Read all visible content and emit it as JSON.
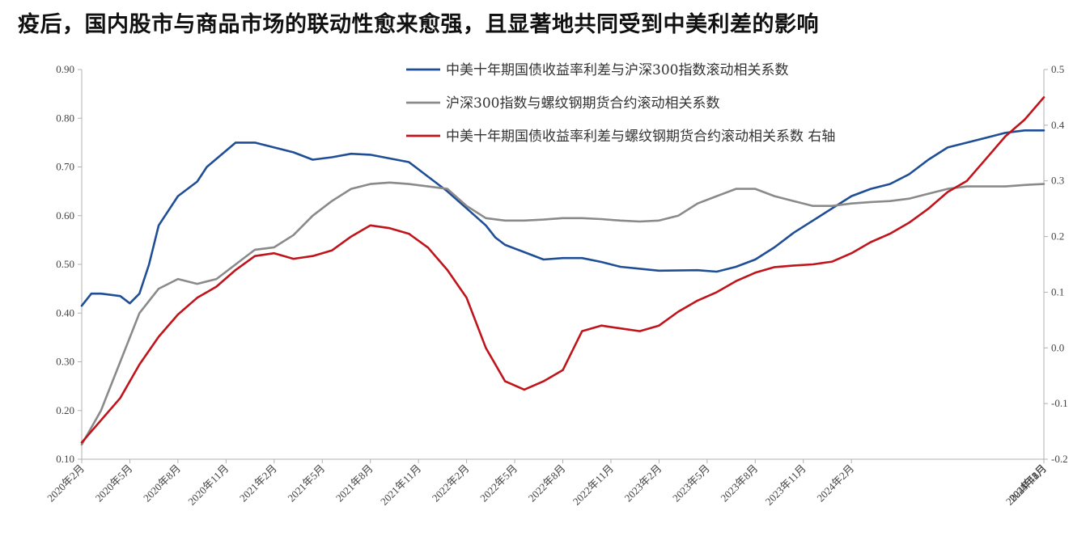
{
  "title": "疫后，国内股市与商品市场的联动性愈来愈强，且显著地共同受到中美利差的影响",
  "chart_data": {
    "type": "line",
    "title": "疫后，国内股市与商品市场的联动性愈来愈强，且显著地共同受到中美利差的影响",
    "xlabel": "",
    "ylabel": "",
    "ylabel_right": "",
    "x_ticks": [
      "2020年2月",
      "2020年5月",
      "2020年8月",
      "2020年11月",
      "2021年2月",
      "2021年5月",
      "2021年8月",
      "2021年11月",
      "2022年2月",
      "2022年5月",
      "2022年8月",
      "2022年11月",
      "2023年2月",
      "2023年5月",
      "2023年8月",
      "2023年11月",
      "2024年2月",
      "2024年5月",
      "2024年8月",
      "2024年11月",
      "2025年2月"
    ],
    "ylim": [
      0.1,
      0.9
    ],
    "ylim_right": [
      -0.2,
      0.5
    ],
    "y_ticks": [
      "0.10",
      "0.20",
      "0.30",
      "0.40",
      "0.50",
      "0.60",
      "0.70",
      "0.80",
      "0.90"
    ],
    "y_ticks_right": [
      "-0.2",
      "-0.1",
      "0.0",
      "0.1",
      "0.2",
      "0.3",
      "0.4",
      "0.5"
    ],
    "grid": false,
    "legend_position": "top-right",
    "series": [
      {
        "name": "中美十年期国债收益率利差与沪深300指数滚动相关系数",
        "color": "#1f4e96",
        "axis": "left",
        "points": [
          [
            0,
            0.415
          ],
          [
            0.5,
            0.44
          ],
          [
            1,
            0.44
          ],
          [
            2,
            0.435
          ],
          [
            2.5,
            0.42
          ],
          [
            3,
            0.44
          ],
          [
            3.5,
            0.5
          ],
          [
            4,
            0.58
          ],
          [
            5,
            0.64
          ],
          [
            6,
            0.67
          ],
          [
            6.5,
            0.7
          ],
          [
            8,
            0.75
          ],
          [
            9,
            0.75
          ],
          [
            10,
            0.74
          ],
          [
            11,
            0.73
          ],
          [
            12,
            0.715
          ],
          [
            13,
            0.72
          ],
          [
            14,
            0.727
          ],
          [
            15,
            0.725
          ],
          [
            17,
            0.71
          ],
          [
            18,
            0.68
          ],
          [
            19,
            0.65
          ],
          [
            20,
            0.615
          ],
          [
            21,
            0.58
          ],
          [
            21.5,
            0.555
          ],
          [
            22,
            0.54
          ],
          [
            23,
            0.525
          ],
          [
            24,
            0.51
          ],
          [
            25,
            0.513
          ],
          [
            26,
            0.513
          ],
          [
            27,
            0.505
          ],
          [
            28,
            0.495
          ],
          [
            30,
            0.487
          ],
          [
            32,
            0.488
          ],
          [
            33,
            0.485
          ],
          [
            34,
            0.495
          ],
          [
            35,
            0.51
          ],
          [
            36,
            0.535
          ],
          [
            37,
            0.565
          ],
          [
            38,
            0.59
          ],
          [
            39,
            0.615
          ],
          [
            40,
            0.64
          ],
          [
            41,
            0.655
          ],
          [
            42,
            0.665
          ],
          [
            43,
            0.685
          ],
          [
            44,
            0.715
          ],
          [
            45,
            0.74
          ],
          [
            46,
            0.75
          ],
          [
            47,
            0.76
          ],
          [
            48,
            0.77
          ],
          [
            49,
            0.775
          ],
          [
            50,
            0.775
          ]
        ]
      },
      {
        "name": "沪深300指数与螺纹钢期货合约滚动相关系数",
        "color": "#8a8a8a",
        "axis": "left",
        "points": [
          [
            0,
            0.13
          ],
          [
            1,
            0.2
          ],
          [
            2,
            0.3
          ],
          [
            3,
            0.4
          ],
          [
            4,
            0.45
          ],
          [
            5,
            0.47
          ],
          [
            6,
            0.46
          ],
          [
            7,
            0.47
          ],
          [
            8,
            0.5
          ],
          [
            9,
            0.53
          ],
          [
            10,
            0.535
          ],
          [
            11,
            0.56
          ],
          [
            12,
            0.6
          ],
          [
            13,
            0.63
          ],
          [
            14,
            0.655
          ],
          [
            15,
            0.665
          ],
          [
            16,
            0.668
          ],
          [
            17,
            0.665
          ],
          [
            18,
            0.66
          ],
          [
            19,
            0.655
          ],
          [
            20,
            0.62
          ],
          [
            21,
            0.595
          ],
          [
            22,
            0.59
          ],
          [
            23,
            0.59
          ],
          [
            24,
            0.592
          ],
          [
            25,
            0.595
          ],
          [
            26,
            0.595
          ],
          [
            27,
            0.593
          ],
          [
            28,
            0.59
          ],
          [
            29,
            0.588
          ],
          [
            30,
            0.59
          ],
          [
            31,
            0.6
          ],
          [
            32,
            0.625
          ],
          [
            33,
            0.64
          ],
          [
            34,
            0.655
          ],
          [
            35,
            0.655
          ],
          [
            36,
            0.64
          ],
          [
            37,
            0.63
          ],
          [
            38,
            0.62
          ],
          [
            39,
            0.62
          ],
          [
            40,
            0.625
          ],
          [
            41,
            0.628
          ],
          [
            42,
            0.63
          ],
          [
            43,
            0.635
          ],
          [
            44,
            0.645
          ],
          [
            45,
            0.655
          ],
          [
            46,
            0.66
          ],
          [
            47,
            0.66
          ],
          [
            48,
            0.66
          ],
          [
            49,
            0.663
          ],
          [
            50,
            0.665
          ]
        ]
      },
      {
        "name": "中美十年期国债收益率利差与螺纹钢期货合约滚动相关系数  右轴",
        "color": "#c0141c",
        "axis": "right",
        "points": [
          [
            0,
            -0.17
          ],
          [
            1,
            -0.13
          ],
          [
            2,
            -0.09
          ],
          [
            3,
            -0.03
          ],
          [
            4,
            0.02
          ],
          [
            5,
            0.06
          ],
          [
            6,
            0.09
          ],
          [
            7,
            0.11
          ],
          [
            8,
            0.14
          ],
          [
            9,
            0.165
          ],
          [
            10,
            0.17
          ],
          [
            11,
            0.16
          ],
          [
            12,
            0.165
          ],
          [
            13,
            0.175
          ],
          [
            14,
            0.2
          ],
          [
            15,
            0.22
          ],
          [
            16,
            0.215
          ],
          [
            17,
            0.205
          ],
          [
            18,
            0.18
          ],
          [
            19,
            0.14
          ],
          [
            20,
            0.09
          ],
          [
            21,
            0.0
          ],
          [
            22,
            -0.06
          ],
          [
            23,
            -0.075
          ],
          [
            24,
            -0.06
          ],
          [
            25,
            -0.04
          ],
          [
            26,
            0.03
          ],
          [
            27,
            0.04
          ],
          [
            28,
            0.035
          ],
          [
            29,
            0.03
          ],
          [
            30,
            0.04
          ],
          [
            31,
            0.065
          ],
          [
            32,
            0.085
          ],
          [
            33,
            0.1
          ],
          [
            34,
            0.12
          ],
          [
            35,
            0.135
          ],
          [
            36,
            0.145
          ],
          [
            37,
            0.148
          ],
          [
            38,
            0.15
          ],
          [
            39,
            0.155
          ],
          [
            40,
            0.17
          ],
          [
            41,
            0.19
          ],
          [
            42,
            0.205
          ],
          [
            43,
            0.225
          ],
          [
            44,
            0.25
          ],
          [
            45,
            0.28
          ],
          [
            46,
            0.3
          ],
          [
            47,
            0.34
          ],
          [
            48,
            0.38
          ],
          [
            49,
            0.41
          ],
          [
            50,
            0.45
          ]
        ]
      }
    ]
  }
}
